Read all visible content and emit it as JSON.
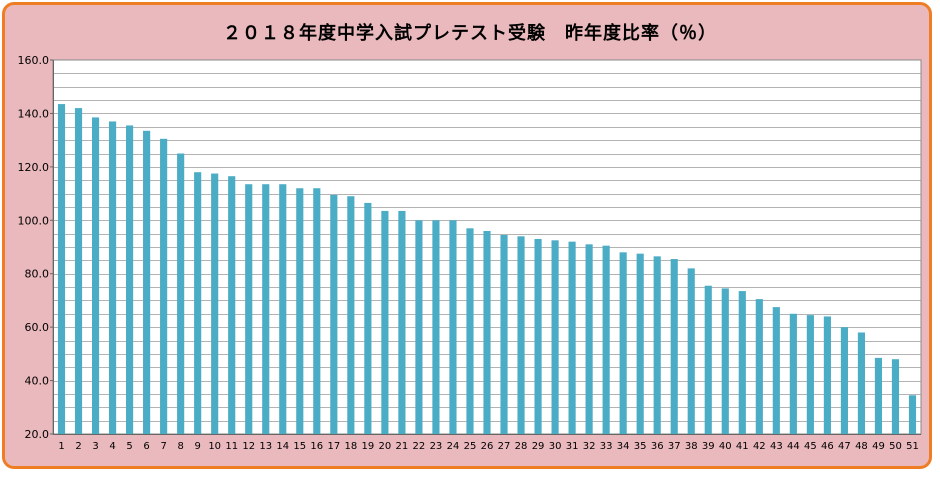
{
  "chart_data": {
    "type": "bar",
    "title": "２０１８年度中学入試プレテスト受験　昨年度比率（％）",
    "xlabel": "",
    "ylabel": "",
    "ylim": [
      20,
      160
    ],
    "yticks": [
      "20.0",
      "40.0",
      "60.0",
      "80.0",
      "100.0",
      "120.0",
      "140.0",
      "160.0"
    ],
    "grid": true,
    "legend": "none",
    "colors": {
      "bar": "#4bacc6",
      "background": "#eab9bd",
      "plot": "#ffffff",
      "border": "#ee7d24"
    },
    "categories": [
      "1",
      "2",
      "3",
      "4",
      "5",
      "6",
      "7",
      "8",
      "9",
      "10",
      "11",
      "12",
      "13",
      "14",
      "15",
      "16",
      "17",
      "18",
      "19",
      "20",
      "21",
      "22",
      "23",
      "24",
      "25",
      "26",
      "27",
      "28",
      "29",
      "30",
      "31",
      "32",
      "33",
      "34",
      "35",
      "36",
      "37",
      "38",
      "39",
      "40",
      "41",
      "42",
      "43",
      "44",
      "45",
      "46",
      "47",
      "48",
      "49",
      "50",
      "51"
    ],
    "values": [
      143.5,
      142,
      138.5,
      137,
      135.5,
      133.5,
      130.5,
      125,
      118,
      117.5,
      116.5,
      113.5,
      113.5,
      113.5,
      112,
      112,
      109.5,
      109,
      106.5,
      103.5,
      103.5,
      100,
      100,
      100,
      97,
      96,
      94.5,
      94,
      93,
      92.5,
      92,
      91,
      90.5,
      88,
      87.5,
      86.5,
      85.5,
      82,
      75.5,
      74.5,
      73.5,
      70.5,
      67.5,
      65,
      64.5,
      64,
      60,
      58,
      48.5,
      48,
      34.5
    ]
  }
}
